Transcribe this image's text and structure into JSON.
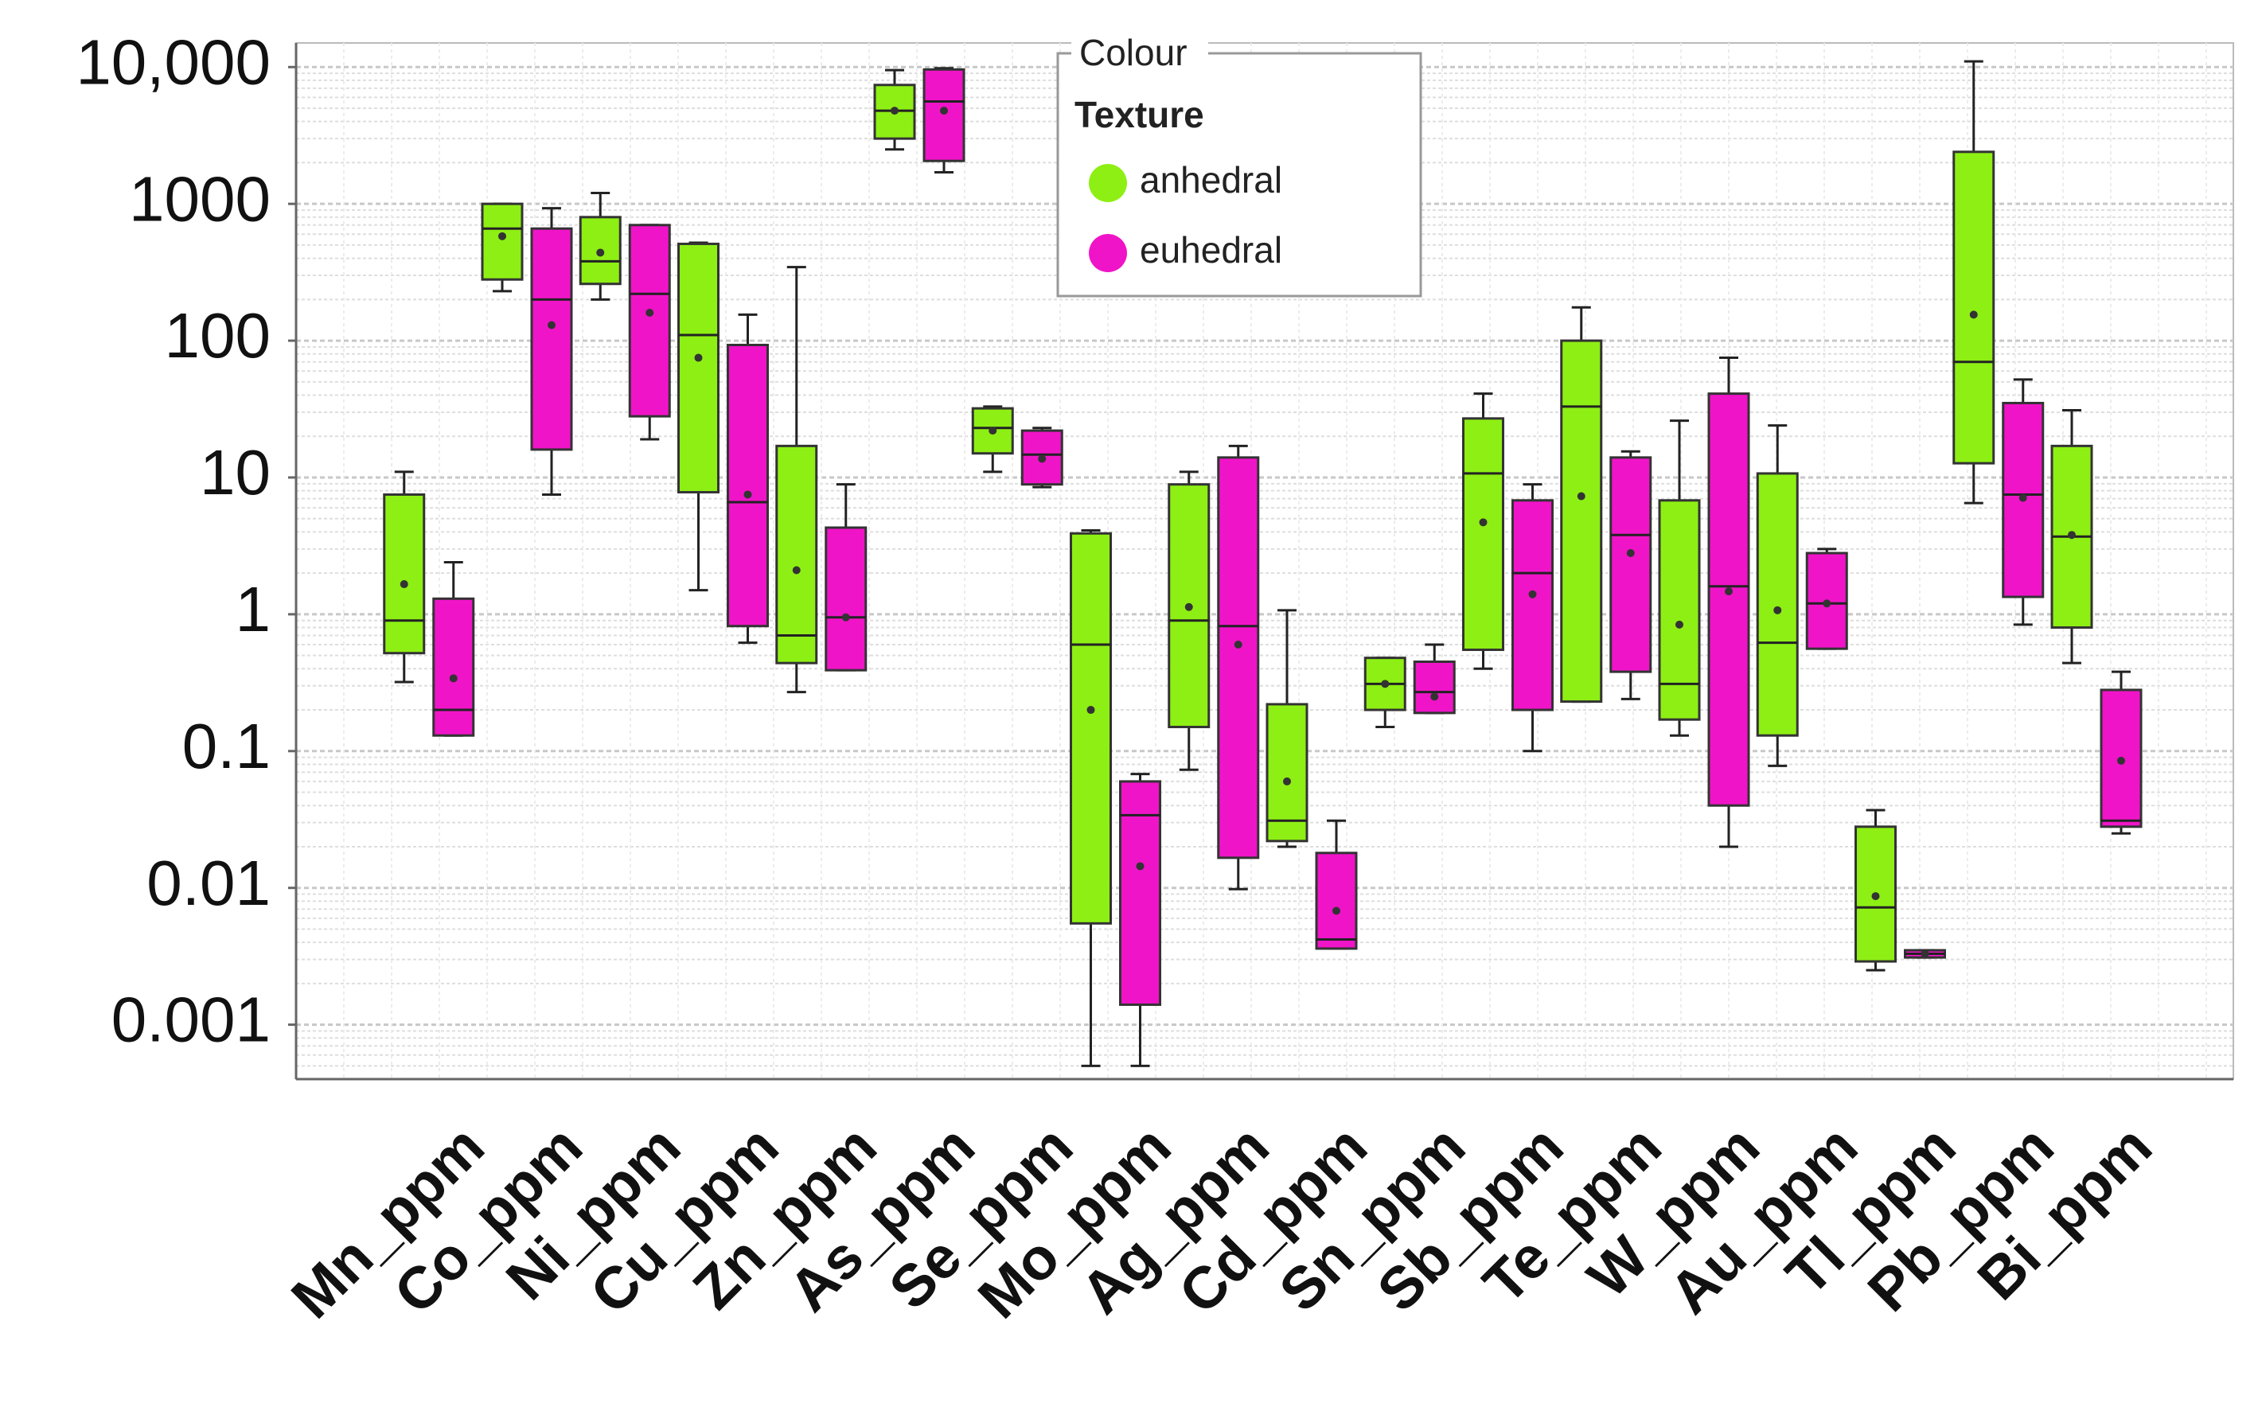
{
  "chart_data": {
    "type": "box",
    "legend_title": "Colour",
    "legend_heading": "Texture",
    "log_scale": true,
    "grid": true,
    "minor_grid": true,
    "ylim": [
      0.0004,
      15000
    ],
    "yticks": [
      0.001,
      0.01,
      0.1,
      1,
      10,
      100,
      1000,
      {
        "value": 10000,
        "label": "10,000"
      }
    ],
    "categories": [
      "Mn_ppm",
      "Co_ppm",
      "Ni_ppm",
      "Cu_ppm",
      "Zn_ppm",
      "As_ppm",
      "Se_ppm",
      "Mo_ppm",
      "Ag_ppm",
      "Cd_ppm",
      "Sn_ppm",
      "Sb_ppm",
      "Te_ppm",
      "W_ppm",
      "Au_ppm",
      "Tl_ppm",
      "Pb_ppm",
      "Bi_ppm"
    ],
    "series": [
      {
        "name": "anhedral",
        "color": "#8eef14",
        "low": [
          0.32,
          230,
          200,
          1.5,
          0.27,
          2500,
          11,
          0.0005,
          0.073,
          0.02,
          0.15,
          0.4,
          0.23,
          0.13,
          0.078,
          0.0025,
          6.5,
          0.44
        ],
        "q1": [
          0.52,
          280,
          260,
          7.8,
          0.44,
          3000,
          15,
          0.0055,
          0.15,
          0.022,
          0.2,
          0.55,
          0.23,
          0.17,
          0.13,
          0.0029,
          12.7,
          0.8
        ],
        "median": [
          0.9,
          660,
          380,
          110,
          0.7,
          4800,
          23,
          0.6,
          0.9,
          0.031,
          0.31,
          10.7,
          33,
          0.31,
          0.62,
          0.0072,
          70,
          3.7
        ],
        "q3": [
          7.5,
          1000,
          800,
          510,
          17,
          7400,
          32,
          3.9,
          8.9,
          0.22,
          0.48,
          27,
          100,
          6.8,
          10.7,
          0.028,
          2400,
          17
        ],
        "high": [
          11,
          1000,
          1200,
          520,
          345,
          9500,
          33,
          4.1,
          11,
          1.07,
          0.48,
          41,
          175,
          26,
          24,
          0.037,
          11000,
          31
        ],
        "mean": [
          1.66,
          580,
          440,
          75,
          2.1,
          4800,
          22,
          0.2,
          1.13,
          0.06,
          0.31,
          4.7,
          7.3,
          0.84,
          1.07,
          0.0087,
          155,
          3.8
        ]
      },
      {
        "name": "euhedral",
        "color": "#f014c8",
        "low": [
          0.13,
          7.5,
          19,
          0.62,
          0.39,
          1700,
          8.5,
          0.0005,
          0.0098,
          0.0036,
          0.19,
          0.1,
          0.24,
          0.02,
          0.56,
          0.0031,
          0.84,
          0.025
        ],
        "q1": [
          0.13,
          16,
          28,
          0.82,
          0.39,
          2060,
          8.9,
          0.0014,
          0.0166,
          0.0036,
          0.19,
          0.2,
          0.38,
          0.04,
          0.56,
          0.0031,
          1.34,
          0.028
        ],
        "median": [
          0.2,
          200,
          220,
          6.6,
          0.95,
          5600,
          14.7,
          0.034,
          0.82,
          0.0042,
          0.27,
          2,
          3.8,
          1.6,
          1.2,
          0.0033,
          7.5,
          0.031
        ],
        "q3": [
          1.3,
          660,
          700,
          93,
          4.3,
          9600,
          22,
          0.06,
          14,
          0.018,
          0.45,
          6.8,
          14,
          41,
          2.8,
          0.0035,
          35,
          0.28
        ],
        "high": [
          2.4,
          930,
          700,
          155,
          8.9,
          9800,
          23,
          0.068,
          17,
          0.031,
          0.6,
          8.9,
          15.5,
          75,
          3,
          0.0035,
          52,
          0.38
        ],
        "mean": [
          0.34,
          130,
          160,
          7.5,
          0.95,
          4800,
          13.7,
          0.0144,
          0.6,
          0.0068,
          0.25,
          1.4,
          2.8,
          1.47,
          1.2,
          0.0033,
          7.1,
          0.085
        ]
      }
    ]
  }
}
